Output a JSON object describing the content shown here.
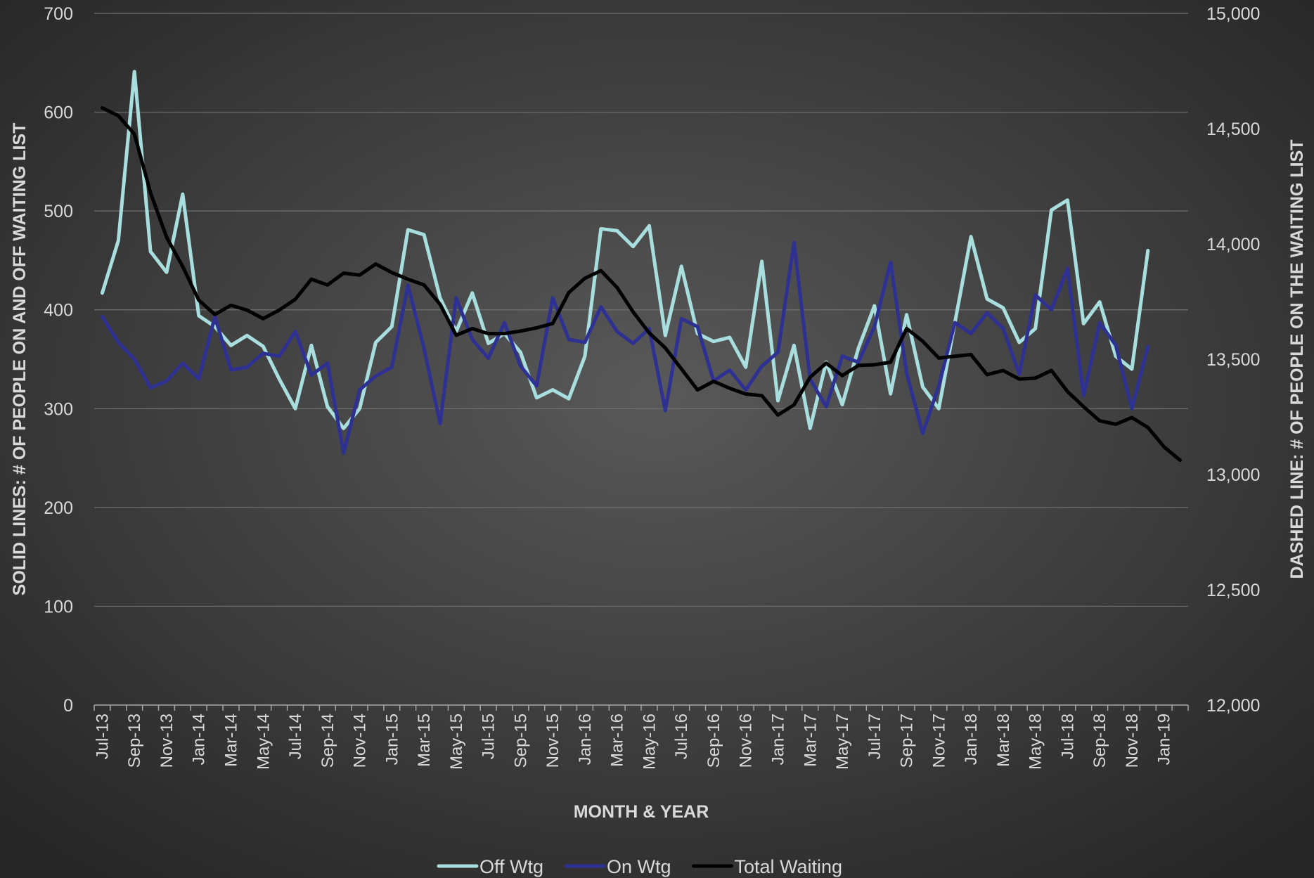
{
  "chart_data": {
    "type": "line",
    "x_label": "MONTH & YEAR",
    "y_label": "SOLID LINES: # OF PEOPLE ON AND OFF WAITING LIST",
    "y2_label": "DASHED LINE: # OF PEOPLE ON THE WAITING LIST",
    "categories": [
      "Jul-13",
      null,
      "Sep-13",
      null,
      "Nov-13",
      null,
      "Jan-14",
      null,
      "Mar-14",
      null,
      "May-14",
      null,
      "Jul-14",
      null,
      "Sep-14",
      null,
      "Nov-14",
      null,
      "Jan-15",
      null,
      "Mar-15",
      null,
      "May-15",
      null,
      "Jul-15",
      null,
      "Sep-15",
      null,
      "Nov-15",
      null,
      "Jan-16",
      null,
      "Mar-16",
      null,
      "May-16",
      null,
      "Jul-16",
      null,
      "Sep-16",
      null,
      "Nov-16",
      null,
      "Jan-17",
      null,
      "Mar-17",
      null,
      "May-17",
      null,
      "Jul-17",
      null,
      "Sep-17",
      null,
      "Nov-17",
      null,
      "Jan-18",
      null,
      "Mar-18",
      null,
      "May-18",
      null,
      "Jul-18",
      null,
      "Sep-18",
      null,
      "Nov-18",
      null,
      "Jan-19",
      null
    ],
    "series": [
      {
        "name": "Off Wtg",
        "color": "#a9dede",
        "values": [
          417,
          470,
          641,
          459,
          438,
          517,
          394,
          383,
          364,
          374,
          363,
          330,
          300,
          364,
          302,
          280,
          300,
          367,
          383,
          481,
          476,
          412,
          378,
          417,
          366,
          376,
          357,
          311,
          319,
          310,
          353,
          482,
          480,
          464,
          485,
          374,
          444,
          376,
          368,
          372,
          342,
          449,
          308,
          364,
          280,
          347,
          304,
          361,
          404,
          315,
          395,
          322,
          300,
          387,
          474,
          411,
          402,
          367,
          381,
          501,
          511,
          386,
          408,
          353,
          340,
          460,
          null,
          null
        ]
      },
      {
        "name": "On Wtg",
        "color": "#2e3192",
        "values": [
          393,
          367,
          350,
          321,
          328,
          346,
          330,
          393,
          339,
          342,
          356,
          353,
          378,
          334,
          346,
          255,
          319,
          333,
          342,
          425,
          361,
          285,
          412,
          370,
          351,
          387,
          343,
          323,
          412,
          370,
          367,
          403,
          378,
          366,
          381,
          298,
          391,
          383,
          328,
          339,
          319,
          343,
          357,
          468,
          330,
          302,
          353,
          347,
          383,
          448,
          336,
          275,
          323,
          387,
          376,
          397,
          381,
          335,
          415,
          400,
          442,
          313,
          387,
          364,
          300,
          363,
          null,
          null
        ]
      },
      {
        "name": "Total Waiting",
        "color": "#000000",
        "axis": "y2",
        "values": [
          14590,
          14556,
          14476,
          14222,
          14029,
          13902,
          13756,
          13694,
          13734,
          13713,
          13676,
          13713,
          13760,
          13847,
          13822,
          13873,
          13865,
          13913,
          13876,
          13847,
          13822,
          13738,
          13604,
          13633,
          13611,
          13611,
          13622,
          13636,
          13655,
          13789,
          13851,
          13884,
          13811,
          13705,
          13614,
          13549,
          13458,
          13367,
          13404,
          13374,
          13349,
          13342,
          13258,
          13302,
          13422,
          13483,
          13429,
          13473,
          13476,
          13487,
          13633,
          13578,
          13505,
          13513,
          13520,
          13433,
          13451,
          13414,
          13418,
          13451,
          13360,
          13294,
          13233,
          13218,
          13247,
          13204,
          13120,
          13062
        ]
      }
    ],
    "ylim": [
      0,
      700
    ],
    "yticks": [
      0,
      100,
      200,
      300,
      400,
      500,
      600,
      700
    ],
    "y2lim": [
      12000,
      15000
    ],
    "y2ticks": [
      {
        "value": 12000,
        "label": "12,000"
      },
      {
        "value": 12500,
        "label": "12,500"
      },
      {
        "value": 13000,
        "label": "13,000"
      },
      {
        "value": 13500,
        "label": "13,500"
      },
      {
        "value": 14000,
        "label": "14,000"
      },
      {
        "value": 14500,
        "label": "14,500"
      },
      {
        "value": 15000,
        "label": "15,000"
      }
    ],
    "grid": true,
    "legend": "bottom"
  }
}
